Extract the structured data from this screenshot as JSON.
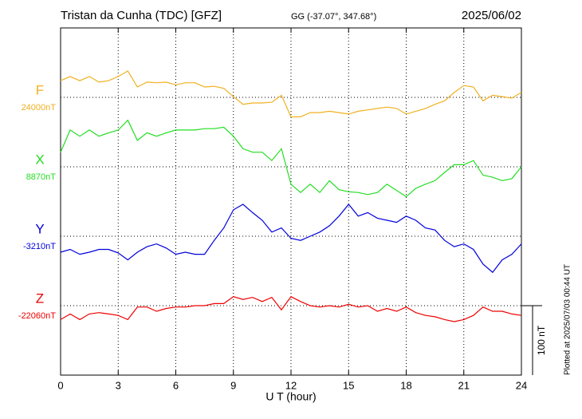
{
  "chart_data": {
    "type": "line",
    "title": "Tristan da Cunha (TDC)  [GFZ]",
    "subtitle": "GG (-37.07°, 347.68°)",
    "date": "2025/06/02",
    "x_label": "U T (hour)",
    "note": "Plotted at 2025/07/03 00:44 UT",
    "xlim": [
      0,
      24
    ],
    "xticks": [
      0,
      3,
      6,
      9,
      12,
      15,
      18,
      21,
      24
    ],
    "grid": true,
    "scale_bar": {
      "value": 100,
      "label": "100 nT"
    },
    "x": [
      0,
      0.5,
      1,
      1.5,
      2,
      2.5,
      3,
      3.5,
      4,
      4.5,
      5,
      5.5,
      6,
      6.5,
      7,
      7.5,
      8,
      8.5,
      9,
      9.5,
      10,
      10.5,
      11,
      11.5,
      12,
      12.5,
      13,
      13.5,
      14,
      14.5,
      15,
      15.5,
      16,
      16.5,
      17,
      17.5,
      18,
      18.5,
      19,
      19.5,
      20,
      20.5,
      21,
      21.5,
      22,
      22.5,
      23,
      23.5,
      24
    ],
    "series": [
      {
        "name": "F",
        "color": "#f0b020",
        "baseline": {
          "value": 24000,
          "label": "24000nT"
        },
        "values": [
          24024,
          24030,
          24024,
          24030,
          24022,
          24024,
          24030,
          24038,
          24015,
          24022,
          24021,
          24022,
          24018,
          24021,
          24021,
          24015,
          24016,
          24013,
          24001,
          23990,
          23992,
          23992,
          23993,
          24003,
          23972,
          23972,
          23978,
          23978,
          23980,
          23978,
          23976,
          23980,
          23982,
          23984,
          23986,
          23984,
          23976,
          23980,
          23984,
          23990,
          23995,
          24007,
          24017,
          24015,
          23995,
          24003,
          24001,
          23999,
          24007
        ]
      },
      {
        "name": "X",
        "color": "#22dd22",
        "baseline": {
          "value": 8870,
          "label": "8870nT"
        },
        "values": [
          8891,
          8923,
          8914,
          8923,
          8914,
          8919,
          8923,
          8937,
          8908,
          8919,
          8914,
          8919,
          8923,
          8923,
          8923,
          8925,
          8925,
          8927,
          8914,
          8896,
          8891,
          8891,
          8879,
          8896,
          8845,
          8833,
          8845,
          8833,
          8850,
          8837,
          8834,
          8833,
          8830,
          8833,
          8845,
          8836,
          8827,
          8839,
          8845,
          8850,
          8862,
          8873,
          8873,
          8879,
          8858,
          8855,
          8850,
          8853,
          8870
        ]
      },
      {
        "name": "Y",
        "color": "#0000dd",
        "baseline": {
          "value": -3210,
          "label": "-3210nT"
        },
        "values": [
          -3233,
          -3229,
          -3236,
          -3233,
          -3229,
          -3229,
          -3234,
          -3244,
          -3233,
          -3225,
          -3221,
          -3227,
          -3236,
          -3233,
          -3236,
          -3236,
          -3216,
          -3198,
          -3172,
          -3164,
          -3176,
          -3187,
          -3204,
          -3198,
          -3213,
          -3216,
          -3210,
          -3204,
          -3195,
          -3181,
          -3164,
          -3181,
          -3176,
          -3184,
          -3187,
          -3190,
          -3181,
          -3187,
          -3198,
          -3201,
          -3216,
          -3225,
          -3221,
          -3229,
          -3250,
          -3262,
          -3244,
          -3236,
          -3221
        ]
      },
      {
        "name": "Z",
        "color": "#ee0000",
        "baseline": {
          "value": -22060,
          "label": "-22060nT"
        },
        "values": [
          -22080,
          -22072,
          -22080,
          -22072,
          -22070,
          -22072,
          -22074,
          -22080,
          -22062,
          -22062,
          -22068,
          -22064,
          -22062,
          -22062,
          -22060,
          -22060,
          -22057,
          -22057,
          -22047,
          -22051,
          -22048,
          -22054,
          -22048,
          -22066,
          -22047,
          -22054,
          -22060,
          -22062,
          -22060,
          -22062,
          -22058,
          -22062,
          -22060,
          -22068,
          -22064,
          -22068,
          -22062,
          -22070,
          -22074,
          -22076,
          -22080,
          -22083,
          -22080,
          -22074,
          -22062,
          -22068,
          -22068,
          -22072,
          -22074
        ]
      }
    ]
  }
}
